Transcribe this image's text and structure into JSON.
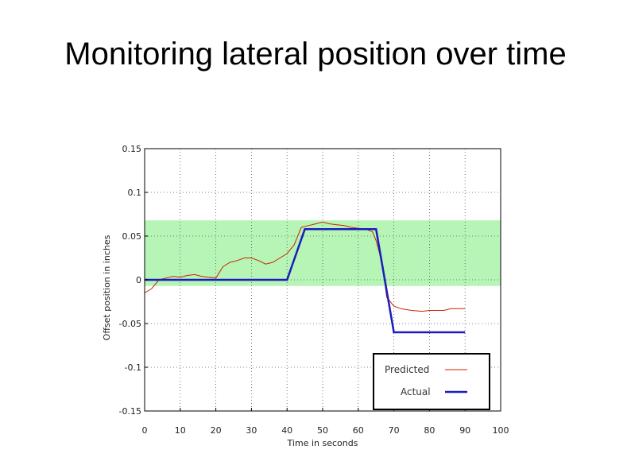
{
  "slide": {
    "title": "Monitoring lateral position over time"
  },
  "colors": {
    "band": "#b6f5b6",
    "predicted": "#cc2200",
    "actual": "#1b1bbf",
    "grid": "#555555"
  },
  "chart_data": {
    "type": "line",
    "title": "",
    "xlabel": "Time in seconds",
    "ylabel": "Offset position in inches",
    "xlim": [
      0,
      100
    ],
    "ylim": [
      -0.15,
      0.15
    ],
    "xticks": [
      0,
      10,
      20,
      30,
      40,
      50,
      60,
      70,
      80,
      90,
      100
    ],
    "yticks": [
      0.15,
      0.1,
      0.05,
      0,
      -0.05,
      -0.1,
      -0.15
    ],
    "ytick_labels": [
      "0.15",
      "0.1",
      "0.05",
      "0",
      "-0.05",
      "-0.1",
      "-0.15"
    ],
    "grid": true,
    "legend_position": "bottom-right",
    "band": {
      "y_from": -0.007,
      "y_to": 0.068
    },
    "series": [
      {
        "name": "Predicted",
        "x": [
          0,
          2,
          4,
          6,
          8,
          10,
          12,
          14,
          16,
          18,
          20,
          22,
          24,
          26,
          28,
          30,
          32,
          34,
          36,
          38,
          40,
          42,
          44,
          46,
          48,
          50,
          52,
          54,
          56,
          58,
          60,
          62,
          64,
          65,
          66,
          67,
          68,
          70,
          72,
          75,
          78,
          80,
          82,
          84,
          86,
          88,
          90
        ],
        "y": [
          -0.015,
          -0.01,
          0.0,
          0.002,
          0.004,
          0.003,
          0.005,
          0.006,
          0.004,
          0.003,
          0.002,
          0.015,
          0.02,
          0.022,
          0.025,
          0.025,
          0.022,
          0.018,
          0.02,
          0.025,
          0.03,
          0.04,
          0.06,
          0.062,
          0.064,
          0.066,
          0.064,
          0.063,
          0.062,
          0.06,
          0.059,
          0.058,
          0.055,
          0.045,
          0.03,
          0.01,
          -0.02,
          -0.03,
          -0.033,
          -0.035,
          -0.036,
          -0.035,
          -0.035,
          -0.035,
          -0.033,
          -0.033,
          -0.033
        ]
      },
      {
        "name": "Actual",
        "x": [
          0,
          40,
          45,
          65,
          70,
          90
        ],
        "y": [
          0.0,
          0.0,
          0.058,
          0.058,
          -0.06,
          -0.06
        ]
      }
    ]
  }
}
